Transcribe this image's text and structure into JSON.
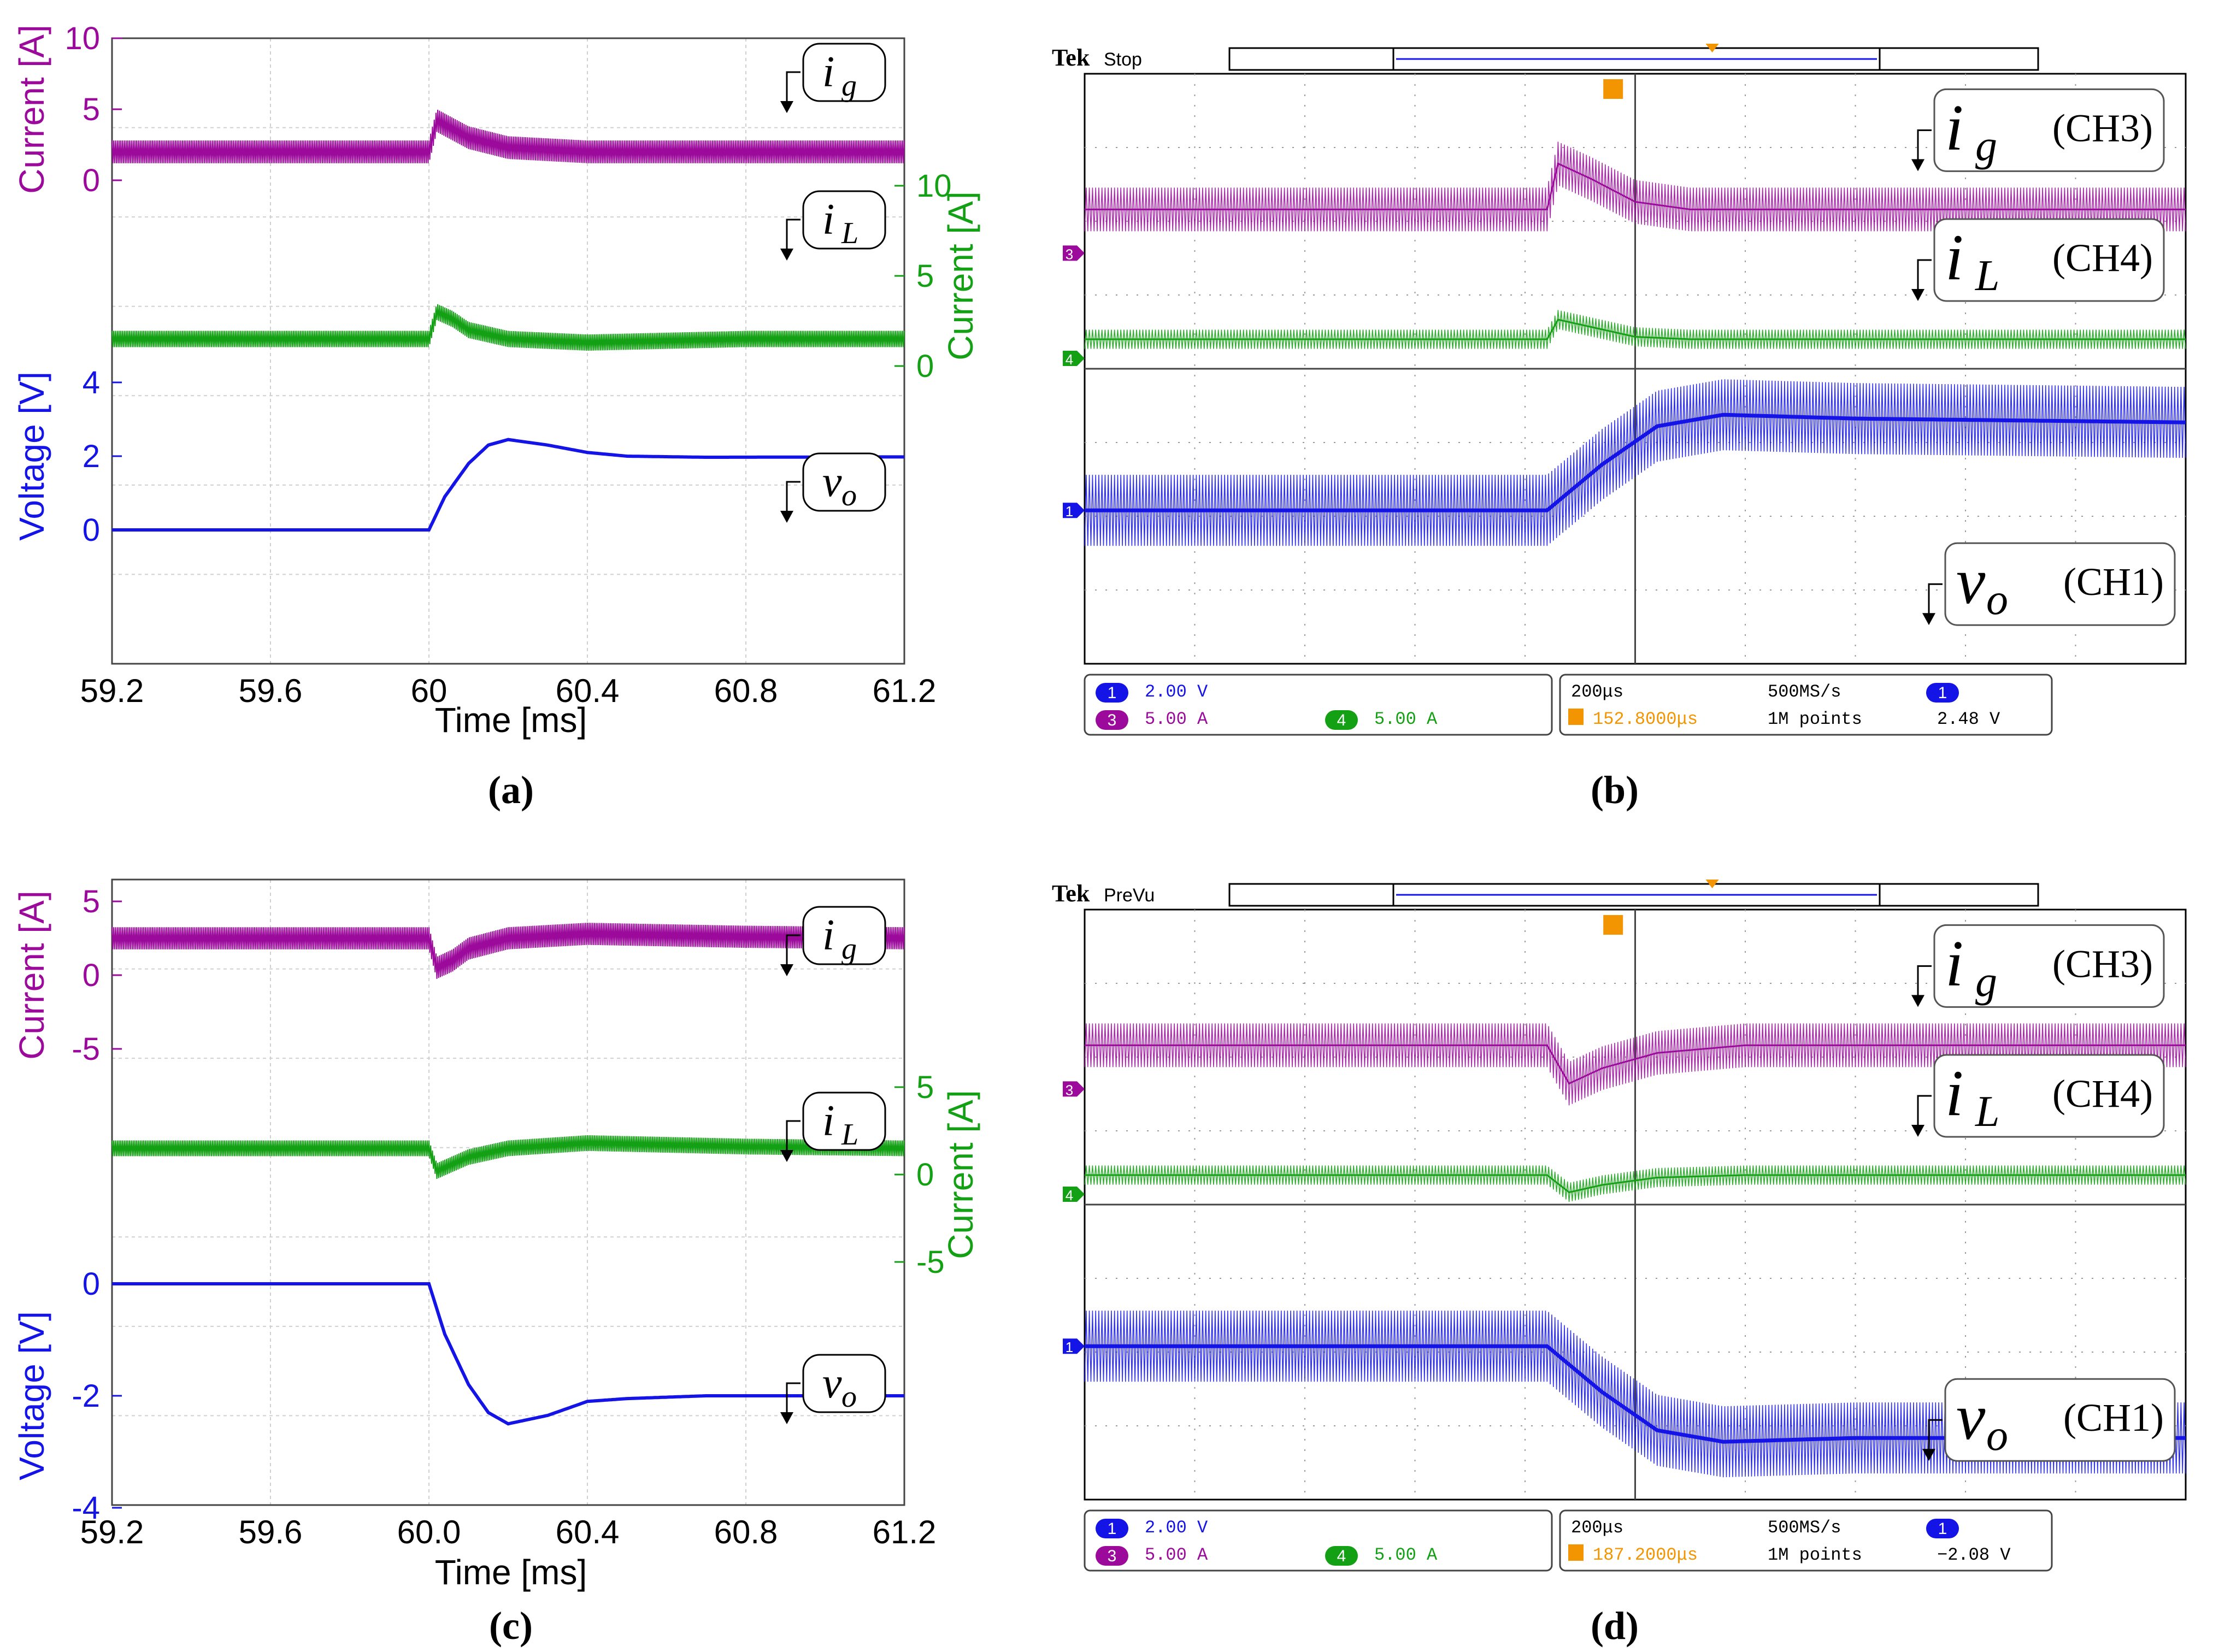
{
  "colors": {
    "ig": "#9b0a9b",
    "iL": "#14a014",
    "vo": "#1414e6",
    "scope_bg": "#ffffff",
    "grid": "#9a9a9a",
    "tek_orange": "#f29500"
  },
  "chart_data": [
    {
      "panel": "(a)",
      "type": "line",
      "xlabel": "Time [ms]",
      "xticks": [
        "59.2",
        "59.6",
        "60",
        "60.4",
        "60.8",
        "61.2"
      ],
      "xlim": [
        59.2,
        61.2
      ],
      "grid": true,
      "series": [
        {
          "name": "i_g",
          "axis": "Current [A]",
          "side": "left",
          "yticks": [
            "0",
            "5",
            "10"
          ],
          "ylim": [
            0,
            10
          ],
          "x": [
            59.2,
            59.9,
            60.0,
            60.02,
            60.06,
            60.1,
            60.2,
            60.4,
            60.8,
            61.2
          ],
          "y": [
            2.0,
            2.0,
            2.0,
            4.2,
            3.6,
            3.0,
            2.3,
            2.0,
            2.0,
            2.0
          ],
          "ripple": 1.6
        },
        {
          "name": "i_L",
          "axis": "Current [A]",
          "side": "right",
          "yticks": [
            "0",
            "5",
            "10"
          ],
          "ylim": [
            0,
            10
          ],
          "x": [
            59.2,
            59.9,
            60.0,
            60.02,
            60.06,
            60.1,
            60.2,
            60.4,
            60.8,
            61.2
          ],
          "y": [
            1.5,
            1.5,
            1.5,
            3.0,
            2.6,
            2.0,
            1.5,
            1.3,
            1.5,
            1.5
          ],
          "ripple": 0.9
        },
        {
          "name": "v_o",
          "axis": "Voltage [V]",
          "side": "left",
          "yticks": [
            "0",
            "2",
            "4"
          ],
          "ylim": [
            0,
            4
          ],
          "x": [
            59.2,
            59.9,
            60.0,
            60.04,
            60.1,
            60.15,
            60.2,
            60.3,
            60.4,
            60.5,
            60.7,
            61.2
          ],
          "y": [
            0,
            0,
            0,
            0.9,
            1.8,
            2.3,
            2.45,
            2.3,
            2.1,
            2.0,
            1.97,
            1.98
          ],
          "ripple": 0
        }
      ]
    },
    {
      "panel": "(b)",
      "type": "line",
      "scope": {
        "brand": "Tek",
        "status": "Stop",
        "ch1_scale": "2.00 V",
        "ch3_scale": "5.00 A",
        "ch4_scale": "5.00 A",
        "timebase": "200μs",
        "sample_rate": "500MS/s",
        "record": "1M points",
        "trigger_pos": "152.8000μs",
        "trigger_level": "2.48 V",
        "ch1_num": "1",
        "ch3_num": "3",
        "ch4_num": "4",
        "trig_ch": "1"
      },
      "labels": {
        "ig": "(CH3)",
        "iL": "(CH4)",
        "vo": "(CH1)"
      },
      "series": [
        {
          "name": "i_g",
          "channel": "CH3",
          "y": [
            0,
            0,
            0,
            1.2,
            0.8,
            0.2,
            0,
            0
          ],
          "x": [
            0,
            0.38,
            0.42,
            0.43,
            0.46,
            0.5,
            0.55,
            1
          ],
          "ripple": 1
        },
        {
          "name": "i_L",
          "channel": "CH4",
          "y": [
            0,
            0,
            0,
            0.8,
            0.5,
            0.1,
            0,
            0
          ],
          "x": [
            0,
            0.38,
            0.42,
            0.43,
            0.46,
            0.5,
            0.55,
            1
          ],
          "ripple": 1
        },
        {
          "name": "v_o",
          "channel": "CH1",
          "y": [
            0,
            0,
            0,
            0.6,
            1.1,
            1.25,
            1.2,
            1.15
          ],
          "x": [
            0,
            0.38,
            0.42,
            0.47,
            0.52,
            0.58,
            0.7,
            1
          ],
          "ripple": 1
        }
      ]
    },
    {
      "panel": "(c)",
      "type": "line",
      "xlabel": "Time [ms]",
      "xticks": [
        "59.2",
        "59.6",
        "60.0",
        "60.4",
        "60.8",
        "61.2"
      ],
      "xlim": [
        59.2,
        61.2
      ],
      "grid": true,
      "series": [
        {
          "name": "i_g",
          "axis": "Current [A]",
          "side": "left",
          "yticks": [
            "-5",
            "0",
            "5"
          ],
          "ylim": [
            -5,
            5
          ],
          "x": [
            59.2,
            59.9,
            60.0,
            60.02,
            60.06,
            60.1,
            60.2,
            60.4,
            60.8,
            61.2
          ],
          "y": [
            2.5,
            2.5,
            2.5,
            0.5,
            1.0,
            1.8,
            2.5,
            2.8,
            2.6,
            2.5
          ],
          "ripple": 1.5
        },
        {
          "name": "i_L",
          "axis": "Current [A]",
          "side": "right",
          "yticks": [
            "-5",
            "0",
            "5"
          ],
          "ylim": [
            -5,
            5
          ],
          "x": [
            59.2,
            59.9,
            60.0,
            60.02,
            60.06,
            60.1,
            60.2,
            60.4,
            60.8,
            61.2
          ],
          "y": [
            1.5,
            1.5,
            1.5,
            0.2,
            0.6,
            1.0,
            1.5,
            1.8,
            1.6,
            1.5
          ],
          "ripple": 0.9
        },
        {
          "name": "v_o",
          "axis": "Voltage [V]",
          "side": "left",
          "yticks": [
            "-4",
            "-2",
            "0"
          ],
          "ylim": [
            -4,
            0
          ],
          "x": [
            59.2,
            59.9,
            60.0,
            60.04,
            60.1,
            60.15,
            60.2,
            60.3,
            60.4,
            60.5,
            60.7,
            61.2
          ],
          "y": [
            0,
            0,
            0,
            -0.9,
            -1.8,
            -2.3,
            -2.5,
            -2.35,
            -2.1,
            -2.05,
            -2.0,
            -2.0
          ],
          "ripple": 0
        }
      ]
    },
    {
      "panel": "(d)",
      "type": "line",
      "scope": {
        "brand": "Tek",
        "status": "PreVu",
        "ch1_scale": "2.00 V",
        "ch3_scale": "5.00 A",
        "ch4_scale": "5.00 A",
        "timebase": "200μs",
        "sample_rate": "500MS/s",
        "record": "1M points",
        "trigger_pos": "187.2000μs",
        "trigger_level": "−2.08 V",
        "ch1_num": "1",
        "ch3_num": "3",
        "ch4_num": "4",
        "trig_ch": "1"
      },
      "labels": {
        "ig": "(CH3)",
        "iL": "(CH4)",
        "vo": "(CH1)"
      },
      "series": [
        {
          "name": "i_g",
          "channel": "CH3",
          "y": [
            0,
            0,
            0,
            -1.0,
            -0.6,
            -0.2,
            0,
            0
          ],
          "x": [
            0,
            0.38,
            0.42,
            0.44,
            0.47,
            0.52,
            0.6,
            1
          ],
          "ripple": 1
        },
        {
          "name": "i_L",
          "channel": "CH4",
          "y": [
            0,
            0,
            0,
            -0.7,
            -0.4,
            -0.1,
            0,
            0
          ],
          "x": [
            0,
            0.38,
            0.42,
            0.44,
            0.47,
            0.52,
            0.6,
            1
          ],
          "ripple": 1
        },
        {
          "name": "v_o",
          "channel": "CH1",
          "y": [
            0,
            0,
            0,
            -0.6,
            -1.1,
            -1.25,
            -1.2,
            -1.2
          ],
          "x": [
            0,
            0.38,
            0.42,
            0.47,
            0.52,
            0.58,
            0.7,
            1
          ],
          "ripple": 1
        }
      ]
    }
  ]
}
